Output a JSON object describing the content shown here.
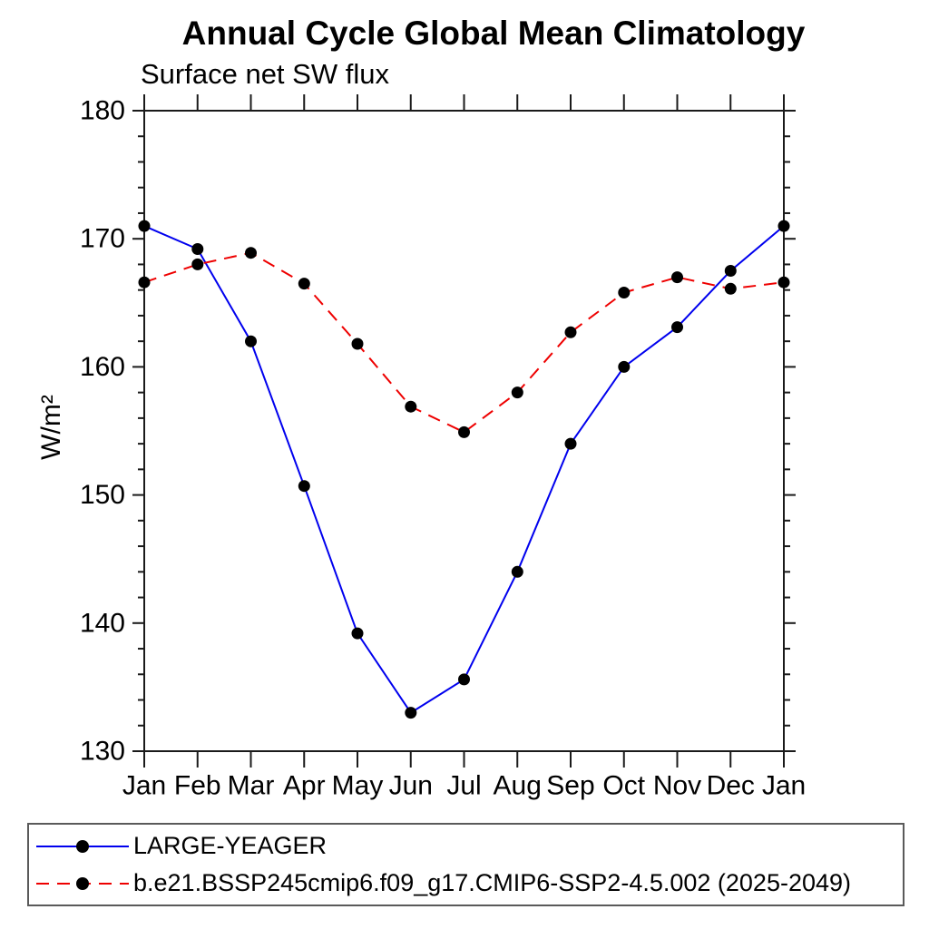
{
  "chart_data": {
    "type": "line",
    "title": "Annual Cycle Global Mean Climatology",
    "subtitle": "Surface net SW flux",
    "ylabel": "W/m²",
    "xlabel": "",
    "x_tick_labels": [
      "Jan",
      "Feb",
      "Mar",
      "Apr",
      "May",
      "Jun",
      "Jul",
      "Aug",
      "Sep",
      "Oct",
      "Nov",
      "Dec",
      "Jan"
    ],
    "y_major_ticks": [
      130,
      140,
      150,
      160,
      170,
      180
    ],
    "y_minor_step": 2,
    "ylim": [
      130,
      180
    ],
    "grid": false,
    "legend_position": "bottom",
    "frame_color": "#1a1a1a",
    "marker_color": "#000000",
    "series": [
      {
        "name": "LARGE-YEAGER",
        "color": "#0000ee",
        "line_style": "solid",
        "marker": "filled-circle",
        "values": [
          171.0,
          169.2,
          162.0,
          150.7,
          139.2,
          133.0,
          135.6,
          144.0,
          154.0,
          160.0,
          163.1,
          167.5,
          171.0
        ]
      },
      {
        "name": "b.e21.BSSP245cmip6.f09_g17.CMIP6-SSP2-4.5.002 (2025-2049)",
        "color": "#ee0000",
        "line_style": "dashed",
        "marker": "filled-circle",
        "values": [
          166.6,
          168.0,
          168.9,
          166.5,
          161.8,
          156.9,
          154.9,
          158.0,
          162.7,
          165.8,
          167.0,
          166.1,
          166.6
        ]
      }
    ]
  }
}
